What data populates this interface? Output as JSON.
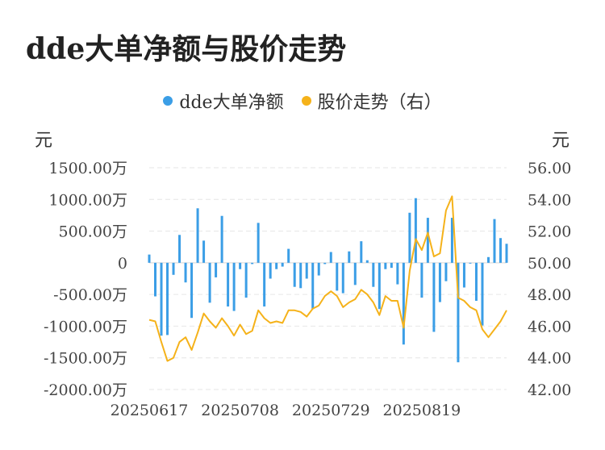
{
  "title": "dde大单净额与股价走势",
  "legend": [
    {
      "label": "dde大单净额",
      "color": "#3b9ee6"
    },
    {
      "label": "股价走势（右）",
      "color": "#f5b21a"
    }
  ],
  "left_unit": "元",
  "right_unit": "元",
  "chart_data": {
    "type": "bar+line",
    "x_tick_labels": [
      "20250617",
      "20250708",
      "20250729",
      "20250819"
    ],
    "y_left_ticks": [
      "1500.00万",
      "1000.00万",
      "500.00万",
      "0",
      "-500.00万",
      "-1000.00万",
      "-1500.00万",
      "-2000.00万"
    ],
    "y_left_range": [
      -2000,
      1500
    ],
    "y_right_ticks": [
      "56.00",
      "54.00",
      "52.00",
      "50.00",
      "48.00",
      "46.00",
      "44.00",
      "42.00"
    ],
    "y_right_range": [
      42,
      56
    ],
    "series": [
      {
        "name": "dde大单净额",
        "axis": "left",
        "type": "bar",
        "unit": "万元",
        "values": [
          130,
          -530,
          -1150,
          -1140,
          -190,
          440,
          -310,
          -870,
          860,
          350,
          -630,
          -230,
          740,
          -690,
          -760,
          -100,
          -550,
          -20,
          630,
          -690,
          -250,
          -100,
          -60,
          220,
          -380,
          -400,
          -250,
          -730,
          -200,
          -20,
          170,
          -440,
          -480,
          180,
          -350,
          340,
          40,
          -380,
          -730,
          -100,
          -80,
          -340,
          -1290,
          790,
          1020,
          -550,
          710,
          -1090,
          -620,
          -290,
          710,
          -1570,
          -390,
          -10,
          -600,
          -990,
          90,
          690,
          390,
          300
        ]
      },
      {
        "name": "股价走势（右）",
        "axis": "right",
        "type": "line",
        "values": [
          46.4,
          46.3,
          45.0,
          43.8,
          44.0,
          45.0,
          45.3,
          44.5,
          45.6,
          46.8,
          46.3,
          45.9,
          46.5,
          46.0,
          45.4,
          46.1,
          45.5,
          45.7,
          47.0,
          46.5,
          46.2,
          46.3,
          46.2,
          47.0,
          47.0,
          46.9,
          46.6,
          47.1,
          47.3,
          47.9,
          48.2,
          47.9,
          47.2,
          47.5,
          47.7,
          48.3,
          48.0,
          47.5,
          46.7,
          47.9,
          47.6,
          47.6,
          45.9,
          49.5,
          51.5,
          50.8,
          51.9,
          50.4,
          50.6,
          53.3,
          54.2,
          47.8,
          47.6,
          47.2,
          47.0,
          45.8,
          45.3,
          45.8,
          46.3,
          47.0
        ]
      }
    ]
  }
}
